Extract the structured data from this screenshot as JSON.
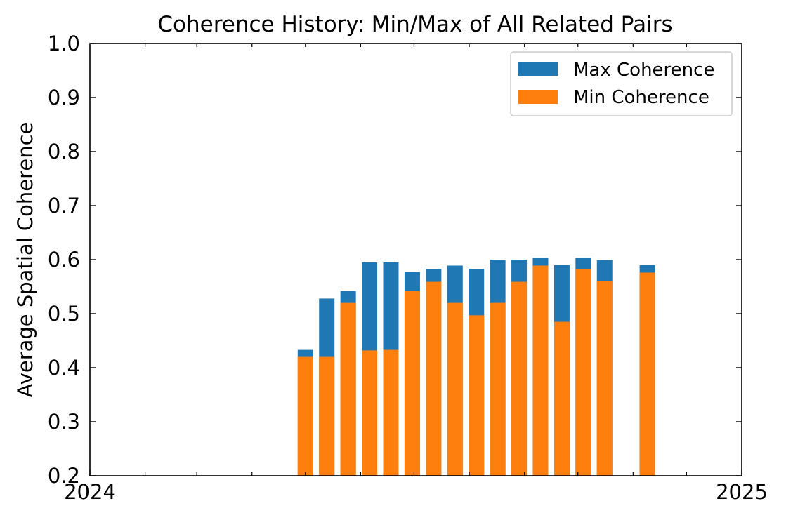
{
  "chart_data": {
    "type": "bar",
    "title": "Coherence History: Min/Max of All Related Pairs",
    "xlabel": "",
    "ylabel": "Average Spatial Coherence",
    "xlim": [
      "2024-01-01",
      "2025-01-01"
    ],
    "ylim": [
      0.2,
      1.0
    ],
    "xticks": [
      "2024",
      "2025"
    ],
    "yticks": [
      "0.2",
      "0.3",
      "0.4",
      "0.5",
      "0.6",
      "0.7",
      "0.8",
      "0.9",
      "1.0"
    ],
    "grid": false,
    "legend_position": "top-right",
    "x": [
      "2024-05-01",
      "2024-05-13",
      "2024-05-25",
      "2024-06-06",
      "2024-06-18",
      "2024-06-30",
      "2024-07-12",
      "2024-07-24",
      "2024-08-05",
      "2024-08-17",
      "2024-08-29",
      "2024-09-10",
      "2024-09-22",
      "2024-10-04",
      "2024-10-16",
      "2024-11-09"
    ],
    "series": [
      {
        "name": "Max Coherence",
        "color": "#1f77b4",
        "values": [
          0.433,
          0.528,
          0.542,
          0.595,
          0.595,
          0.577,
          0.583,
          0.589,
          0.583,
          0.6,
          0.6,
          0.603,
          0.59,
          0.603,
          0.599,
          0.59
        ]
      },
      {
        "name": "Min Coherence",
        "color": "#ff7f0e",
        "values": [
          0.42,
          0.42,
          0.52,
          0.432,
          0.433,
          0.542,
          0.559,
          0.52,
          0.497,
          0.52,
          0.559,
          0.589,
          0.485,
          0.582,
          0.561,
          0.576
        ]
      }
    ]
  }
}
